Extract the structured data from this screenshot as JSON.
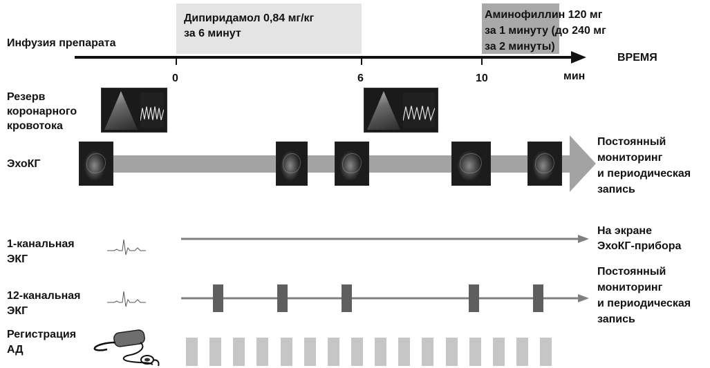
{
  "time_axis": {
    "label": "Инфузия препарата",
    "end_label": "ВРЕМЯ",
    "unit": "мин",
    "ticks": [
      "0",
      "6",
      "10"
    ]
  },
  "phases": {
    "dipyridamole": {
      "line1": "Дипиридамол 0,84 мг/кг",
      "line2": "за 6 минут"
    },
    "aminophylline": {
      "line1": "Аминофиллин 120 мг",
      "line2": "за 1 минуту (до 240 мг",
      "line3": "за 2 минуты)"
    }
  },
  "rows": {
    "coronary_reserve": {
      "line1": "Резерв",
      "line2": "коронарного",
      "line3": "кровотока"
    },
    "echo": {
      "label": "ЭхоКГ",
      "note_line1": "Постоянный",
      "note_line2": "мониторинг",
      "note_line3": "и периодическая",
      "note_line4": "запись"
    },
    "ecg1": {
      "line1": "1-канальная",
      "line2": "ЭКГ",
      "note_line1": "На экране",
      "note_line2": "ЭхоКГ-прибора"
    },
    "ecg12": {
      "line1": "12-канальная",
      "line2": "ЭКГ",
      "note_line1": "Постоянный",
      "note_line2": "мониторинг",
      "note_line3": "и периодическая",
      "note_line4": "запись"
    },
    "bp": {
      "line1": "Регистрация",
      "line2": "АД"
    }
  },
  "colors": {
    "timeline": "#111111",
    "dipyridamole_band": "#e4e4e4",
    "aminophylline_band": "#a9a9a9",
    "echo_arrow": "#a3a3a3",
    "ecg_line": "#808080",
    "ecg_marker": "#5f5f5f",
    "bp_bar": "#c6c6c6"
  },
  "icons": [
    "echo-image-icon",
    "doppler-image-icon",
    "ecg-waveform-icon",
    "sphygmomanometer-icon"
  ]
}
